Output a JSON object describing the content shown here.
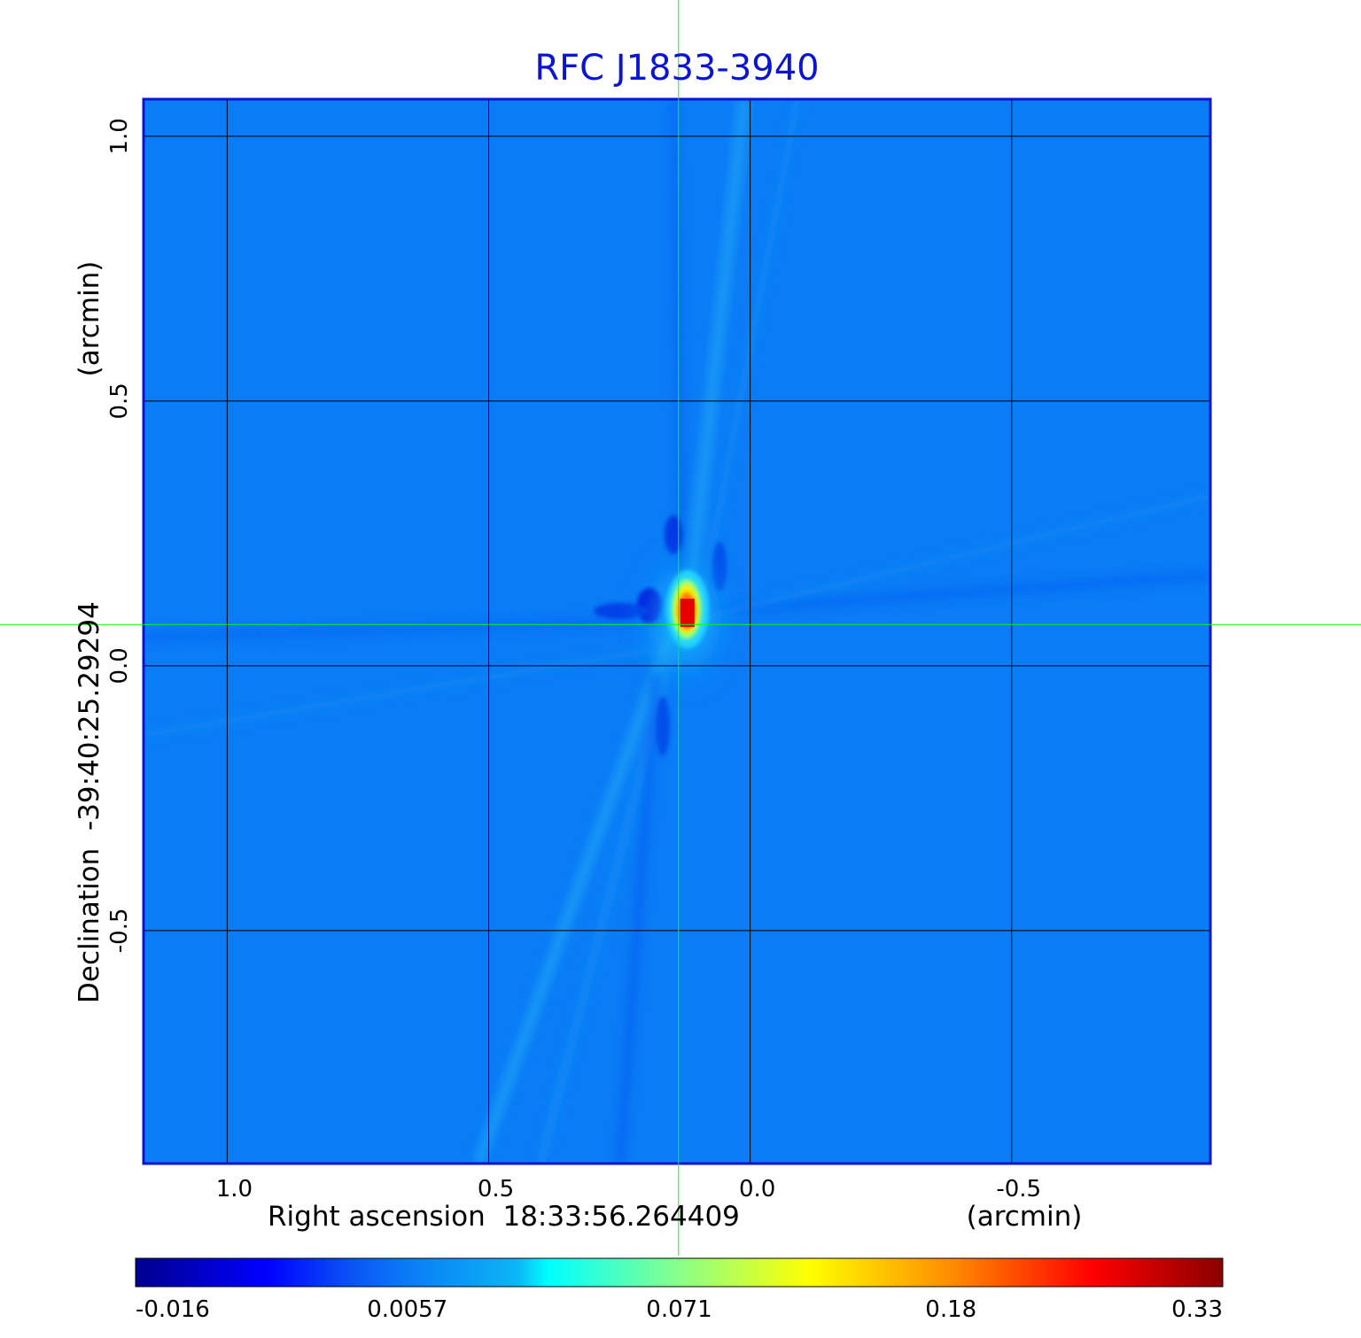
{
  "chart_data": {
    "type": "heatmap",
    "title": "RFC J1833-3940",
    "xlabel": "Right ascension  18:33:56.264409",
    "xunit": "(arcmin)",
    "ylabel": "Declination  -39:40:25.29294",
    "yunit": "(arcmin)",
    "xlim": [
      1.16,
      -0.88
    ],
    "ylim": [
      -0.94,
      1.07
    ],
    "x_ticks": [
      {
        "value": 1.0,
        "label": "1.0"
      },
      {
        "value": 0.5,
        "label": "0.5"
      },
      {
        "value": 0.0,
        "label": "0.0"
      },
      {
        "value": -0.5,
        "label": "-0.5"
      }
    ],
    "y_ticks": [
      {
        "value": 1.0,
        "label": "1.0"
      },
      {
        "value": 0.5,
        "label": "0.5"
      },
      {
        "value": 0.0,
        "label": "0.0"
      },
      {
        "value": -0.5,
        "label": "-0.5"
      }
    ],
    "grid": true,
    "crosshair": {
      "x": 0.137,
      "y": 0.078
    },
    "peak": {
      "x": 0.12,
      "y": 0.1,
      "value": 0.33
    },
    "colormap": "jet",
    "colorbar": {
      "range": [
        -0.016,
        0.33
      ],
      "tick_labels": [
        "-0.016",
        "0.0057",
        "0.071",
        "0.18",
        "0.33"
      ]
    },
    "colors": {
      "title": "#0a14d2",
      "frame": "#0a14d2",
      "crosshair": "#00ff00",
      "grid": "#000000",
      "background_field": "#0a7cf6"
    }
  }
}
